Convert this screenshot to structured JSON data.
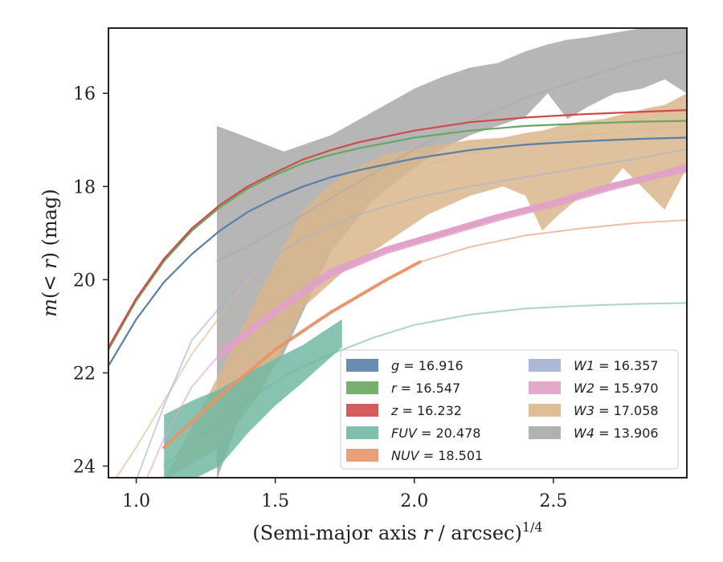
{
  "chart_data": {
    "type": "line",
    "title": "",
    "xlabel_main": "(Semi-major axis ",
    "xlabel_var": "r",
    "xlabel_tail": " / arcsec)",
    "xlabel_sup": "1/4",
    "ylabel_pre": "m",
    "ylabel_mid": "(< ",
    "ylabel_var": "r",
    "ylabel_post": ") (mag)",
    "xlim": [
      0.9,
      2.98
    ],
    "ylim": [
      24.25,
      14.6
    ],
    "y_inverted": true,
    "xticks": [
      1.0,
      1.5,
      2.0,
      2.5
    ],
    "xtick_labels": [
      "1.0",
      "1.5",
      "2.0",
      "2.5"
    ],
    "yticks": [
      16,
      18,
      20,
      22,
      24
    ],
    "ytick_labels": [
      "16",
      "18",
      "20",
      "22",
      "24"
    ],
    "grid": false,
    "legend_placement": "lower-right",
    "legend": [
      {
        "var": "g",
        "value": " = 16.916"
      },
      {
        "var": "W1",
        "value": " = 16.357"
      },
      {
        "var": "r",
        "value": " = 16.547"
      },
      {
        "var": "W2",
        "value": " = 15.970"
      },
      {
        "var": "z",
        "value": " = 16.232"
      },
      {
        "var": "W3",
        "value": " = 17.058"
      },
      {
        "var": "FUV",
        "value": " = 20.478"
      },
      {
        "var": "W4",
        "value": " = 13.906"
      },
      {
        "var": "NUV",
        "value": " = 18.501"
      }
    ],
    "series": [
      {
        "key": "W4",
        "color": "#a9a9a9",
        "band_x": [
          1.29,
          1.38,
          1.53,
          1.7,
          1.85,
          2.0,
          2.1,
          2.2,
          2.3,
          2.4,
          2.48,
          2.55,
          2.62,
          2.72,
          2.82,
          2.9,
          2.98
        ],
        "band_upper": [
          16.7,
          16.9,
          17.25,
          16.9,
          16.4,
          15.9,
          15.65,
          15.45,
          15.35,
          15.1,
          14.95,
          14.85,
          14.8,
          14.7,
          14.6,
          14.6,
          14.6
        ],
        "band_lower": [
          24.3,
          22.8,
          21.6,
          19.4,
          18.3,
          17.6,
          17.2,
          16.9,
          16.7,
          16.5,
          16.0,
          16.55,
          16.3,
          16.0,
          15.9,
          15.7,
          16.0
        ],
        "fit_x": [
          1.29,
          1.4,
          1.6,
          1.8,
          2.0,
          2.2,
          2.4,
          2.6,
          2.8,
          2.98
        ],
        "fit_y": [
          19.6,
          19.3,
          18.6,
          17.9,
          17.2,
          16.6,
          16.1,
          15.7,
          15.3,
          15.1
        ]
      },
      {
        "key": "W3",
        "color": "#d9b78c",
        "band_x": [
          1.1,
          1.3,
          1.45,
          1.6,
          1.75,
          1.9,
          2.05,
          2.2,
          2.32,
          2.4,
          2.46,
          2.52,
          2.6,
          2.68,
          2.75,
          2.85,
          2.9,
          2.98
        ],
        "band_upper": [
          24.3,
          22.0,
          20.2,
          18.5,
          17.7,
          17.3,
          17.15,
          17.0,
          16.95,
          16.85,
          16.8,
          16.7,
          16.6,
          16.55,
          16.45,
          16.3,
          16.25,
          16.0
        ],
        "band_lower": [
          24.3,
          23.6,
          22.4,
          20.6,
          19.8,
          19.2,
          18.6,
          18.2,
          18.0,
          18.2,
          18.95,
          18.6,
          18.2,
          18.1,
          17.6,
          18.2,
          18.5,
          17.6
        ],
        "fit_x": [
          0.9,
          1.0,
          1.2,
          1.4,
          1.6,
          1.8,
          2.0,
          2.2,
          2.4,
          2.6,
          2.8,
          2.98
        ],
        "fit_y": [
          24.5,
          23.6,
          21.6,
          20.0,
          18.9,
          18.1,
          17.6,
          17.3,
          17.1,
          16.9,
          16.8,
          16.7
        ]
      },
      {
        "key": "W2",
        "color": "#e0a1c8",
        "band_x": [
          1.3,
          1.5,
          1.7,
          1.9,
          2.1,
          2.3,
          2.5,
          2.7,
          2.9,
          2.98
        ],
        "band_upper": [
          21.5,
          20.6,
          19.75,
          19.3,
          18.95,
          18.6,
          18.3,
          17.95,
          17.65,
          17.5
        ],
        "band_lower": [
          21.7,
          20.75,
          19.95,
          19.45,
          19.1,
          18.75,
          18.45,
          18.1,
          17.8,
          17.7
        ],
        "fit_x": [
          0.9,
          1.0,
          1.1,
          1.2,
          1.3,
          1.5,
          1.7,
          1.9,
          2.1,
          2.3,
          2.5,
          2.7,
          2.98
        ],
        "fit_y": [
          26.0,
          24.8,
          23.4,
          22.3,
          21.6,
          20.7,
          19.85,
          19.35,
          19.0,
          18.65,
          18.35,
          18.0,
          17.6
        ],
        "solid_x": [
          1.3,
          1.5,
          1.7,
          1.9,
          2.1,
          2.3,
          2.5,
          2.7,
          2.98
        ],
        "solid_y": [
          21.6,
          20.7,
          19.85,
          19.35,
          19.0,
          18.65,
          18.35,
          18.0,
          17.6
        ]
      },
      {
        "key": "W1",
        "color": "#a3b1d1",
        "fit_x": [
          0.9,
          1.0,
          1.1,
          1.2,
          1.4,
          1.6,
          1.8,
          2.0,
          2.2,
          2.4,
          2.6,
          2.8,
          2.98
        ],
        "fit_y": [
          25.5,
          24.3,
          22.7,
          21.3,
          19.9,
          19.1,
          18.6,
          18.25,
          18.0,
          17.8,
          17.6,
          17.4,
          17.2
        ]
      },
      {
        "key": "FUV",
        "color": "#72b8a2",
        "band_x": [
          1.1,
          1.2,
          1.3,
          1.4,
          1.5,
          1.6,
          1.74
        ],
        "band_upper": [
          22.9,
          22.6,
          22.35,
          22.0,
          21.7,
          21.4,
          20.85
        ],
        "band_lower": [
          24.3,
          24.3,
          24.0,
          23.3,
          22.7,
          22.2,
          21.45
        ],
        "fit_x": [
          1.1,
          1.2,
          1.3,
          1.4,
          1.55,
          1.7,
          1.85,
          2.0,
          2.2,
          2.4,
          2.6,
          2.8,
          2.98
        ],
        "fit_y": [
          24.0,
          23.5,
          23.1,
          22.6,
          22.0,
          21.6,
          21.25,
          20.97,
          20.75,
          20.62,
          20.56,
          20.52,
          20.5
        ]
      },
      {
        "key": "NUV",
        "color": "#e8946a",
        "fit_x": [
          1.1,
          1.3,
          1.5,
          1.7,
          1.9,
          2.02,
          2.2,
          2.4,
          2.6,
          2.8,
          2.98
        ],
        "fit_y": [
          23.6,
          22.5,
          21.5,
          20.7,
          20.0,
          19.62,
          19.3,
          19.05,
          18.9,
          18.78,
          18.72
        ],
        "solid_x": [
          1.1,
          1.3,
          1.5,
          1.7,
          1.9,
          2.02
        ],
        "solid_y": [
          23.6,
          22.5,
          21.5,
          20.7,
          20.0,
          19.62
        ]
      },
      {
        "key": "g",
        "color": "#5a80a8",
        "fit_x": [
          0.9,
          1.0,
          1.1,
          1.2,
          1.3,
          1.4,
          1.5,
          1.6,
          1.7,
          1.8,
          2.0,
          2.2,
          2.4,
          2.6,
          2.8,
          2.98
        ],
        "fit_y": [
          21.85,
          20.85,
          20.05,
          19.45,
          18.95,
          18.55,
          18.25,
          18.0,
          17.8,
          17.65,
          17.4,
          17.22,
          17.1,
          17.03,
          16.98,
          16.95
        ]
      },
      {
        "key": "r",
        "color": "#66a85c",
        "fit_x": [
          0.9,
          1.0,
          1.1,
          1.2,
          1.3,
          1.4,
          1.5,
          1.6,
          1.7,
          1.8,
          2.0,
          2.2,
          2.4,
          2.6,
          2.8,
          2.98
        ],
        "fit_y": [
          21.5,
          20.45,
          19.6,
          18.95,
          18.45,
          18.05,
          17.75,
          17.5,
          17.32,
          17.18,
          16.95,
          16.8,
          16.7,
          16.65,
          16.61,
          16.59
        ]
      },
      {
        "key": "z",
        "color": "#d04a4a",
        "fit_x": [
          0.9,
          1.0,
          1.1,
          1.2,
          1.3,
          1.4,
          1.5,
          1.6,
          1.7,
          1.8,
          2.0,
          2.2,
          2.4,
          2.6,
          2.8,
          2.98
        ],
        "fit_y": [
          21.45,
          20.4,
          19.55,
          18.9,
          18.4,
          18.0,
          17.7,
          17.42,
          17.22,
          17.05,
          16.8,
          16.62,
          16.52,
          16.45,
          16.4,
          16.36
        ]
      }
    ]
  }
}
